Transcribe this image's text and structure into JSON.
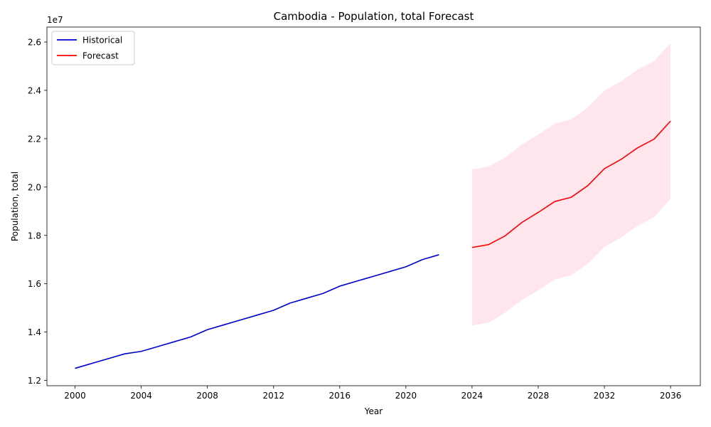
{
  "chart_data": {
    "type": "line",
    "title": "Cambodia - Population, total Forecast",
    "xlabel": "Year",
    "ylabel": "Population, total",
    "y_offset_label": "1e7",
    "xlim": [
      1998.3,
      2037.8
    ],
    "ylim": [
      11780000,
      26620000
    ],
    "x_ticks": [
      2000,
      2004,
      2008,
      2012,
      2016,
      2020,
      2024,
      2028,
      2032,
      2036
    ],
    "y_ticks": [
      12000000,
      14000000,
      16000000,
      18000000,
      20000000,
      22000000,
      24000000,
      26000000
    ],
    "y_tick_labels": [
      "1.2",
      "1.4",
      "1.6",
      "1.8",
      "2.0",
      "2.2",
      "2.4",
      "2.6"
    ],
    "grid": false,
    "legend_position": "top-left",
    "series": [
      {
        "name": "Historical",
        "color": "#0000cc",
        "x": [
          2000,
          2001,
          2002,
          2003,
          2004,
          2005,
          2006,
          2007,
          2008,
          2009,
          2010,
          2011,
          2012,
          2013,
          2014,
          2015,
          2016,
          2017,
          2018,
          2019,
          2020,
          2021,
          2022
        ],
        "y": [
          12500000,
          12700000,
          12900000,
          13100000,
          13200000,
          13400000,
          13600000,
          13800000,
          14100000,
          14300000,
          14500000,
          14700000,
          14900000,
          15200000,
          15400000,
          15600000,
          15900000,
          16100000,
          16300000,
          16500000,
          16700000,
          17000000,
          17200000
        ]
      },
      {
        "name": "Forecast",
        "color": "#ff0000",
        "x": [
          2024,
          2025,
          2026,
          2027,
          2028,
          2029,
          2030,
          2031,
          2032,
          2033,
          2034,
          2035,
          2036
        ],
        "y": [
          17500000,
          17620000,
          17980000,
          18530000,
          18950000,
          19400000,
          19580000,
          20060000,
          20760000,
          21140000,
          21620000,
          21980000,
          22730000
        ],
        "lower": [
          14270000,
          14390000,
          14800000,
          15320000,
          15730000,
          16170000,
          16350000,
          16830000,
          17520000,
          17910000,
          18390000,
          18750000,
          19510000
        ],
        "upper": [
          20730000,
          20850000,
          21220000,
          21750000,
          22170000,
          22620000,
          22810000,
          23290000,
          23990000,
          24370000,
          24850000,
          25210000,
          25960000
        ],
        "band_color": "#ffe6ec"
      }
    ]
  }
}
